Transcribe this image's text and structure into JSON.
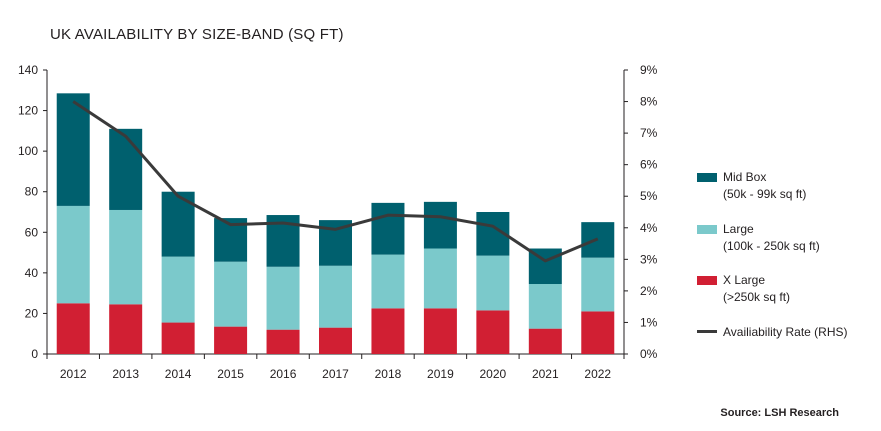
{
  "title": "UK AVAILABILITY BY SIZE-BAND (SQ FT)",
  "source": "Source: LSH Research",
  "chart_data": {
    "type": "bar",
    "stacked": true,
    "categories": [
      "2012",
      "2013",
      "2014",
      "2015",
      "2016",
      "2017",
      "2018",
      "2019",
      "2020",
      "2021",
      "2022"
    ],
    "series": [
      {
        "name": "X Large",
        "sublabel": "(>250k sq ft)",
        "color": "#d11f33",
        "values": [
          25,
          24.5,
          15.5,
          13.5,
          12,
          13,
          22.5,
          22.5,
          21.5,
          12.5,
          21
        ]
      },
      {
        "name": "Large",
        "sublabel": "(100k - 250k sq ft)",
        "color": "#7bc9cb",
        "values": [
          48,
          46.5,
          32.5,
          32,
          31,
          30.5,
          26.5,
          29.5,
          27,
          22,
          26.5
        ]
      },
      {
        "name": "Mid Box",
        "sublabel": "(50k - 99k sq ft)",
        "color": "#00606e",
        "values": [
          55.5,
          40,
          32,
          21.5,
          25.5,
          22.5,
          25.5,
          23,
          21.5,
          17.5,
          17.5
        ]
      }
    ],
    "line_series": {
      "name": "Availiability Rate (RHS)",
      "color": "#3a3a3a",
      "values": [
        8.0,
        6.9,
        5.0,
        4.1,
        4.15,
        3.95,
        4.4,
        4.35,
        4.05,
        2.95,
        3.65
      ]
    },
    "y_left": {
      "min": 0,
      "max": 140,
      "ticks": [
        0,
        20,
        40,
        60,
        80,
        100,
        120,
        140
      ]
    },
    "y_right": {
      "min": 0,
      "max": 9,
      "ticks": [
        "0%",
        "1%",
        "2%",
        "3%",
        "4%",
        "5%",
        "6%",
        "7%",
        "8%",
        "9%"
      ]
    },
    "legend_position": "right"
  }
}
